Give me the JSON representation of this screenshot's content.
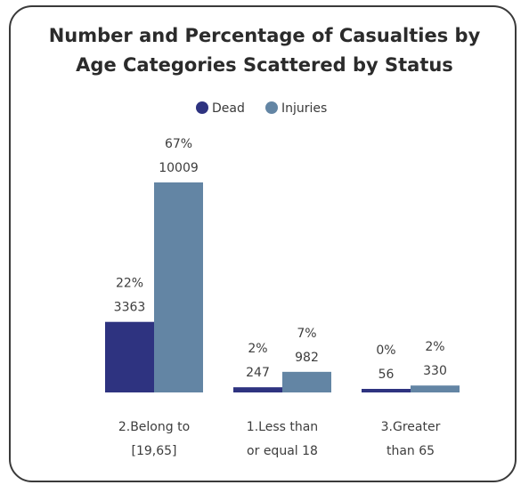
{
  "chart_data": {
    "type": "bar",
    "title_lines": [
      "Number and Percentage of Casualties by",
      "Age Categories Scattered by Status"
    ],
    "categories": [
      [
        "2.Belong to",
        "[19,65]"
      ],
      [
        "1.Less than",
        "or equal 18"
      ],
      [
        "3.Greater",
        "than 65"
      ]
    ],
    "series": [
      {
        "name": "Dead",
        "color": "#2e3380",
        "values": [
          3363,
          247,
          56
        ],
        "percents": [
          "22%",
          "2%",
          "0%"
        ]
      },
      {
        "name": "Injuries",
        "color": "#6385a4",
        "values": [
          10009,
          982,
          330
        ],
        "percents": [
          "67%",
          "7%",
          "2%"
        ]
      }
    ],
    "legend_position": "top-center",
    "grid": false,
    "ylim": [
      0,
      10009
    ]
  }
}
